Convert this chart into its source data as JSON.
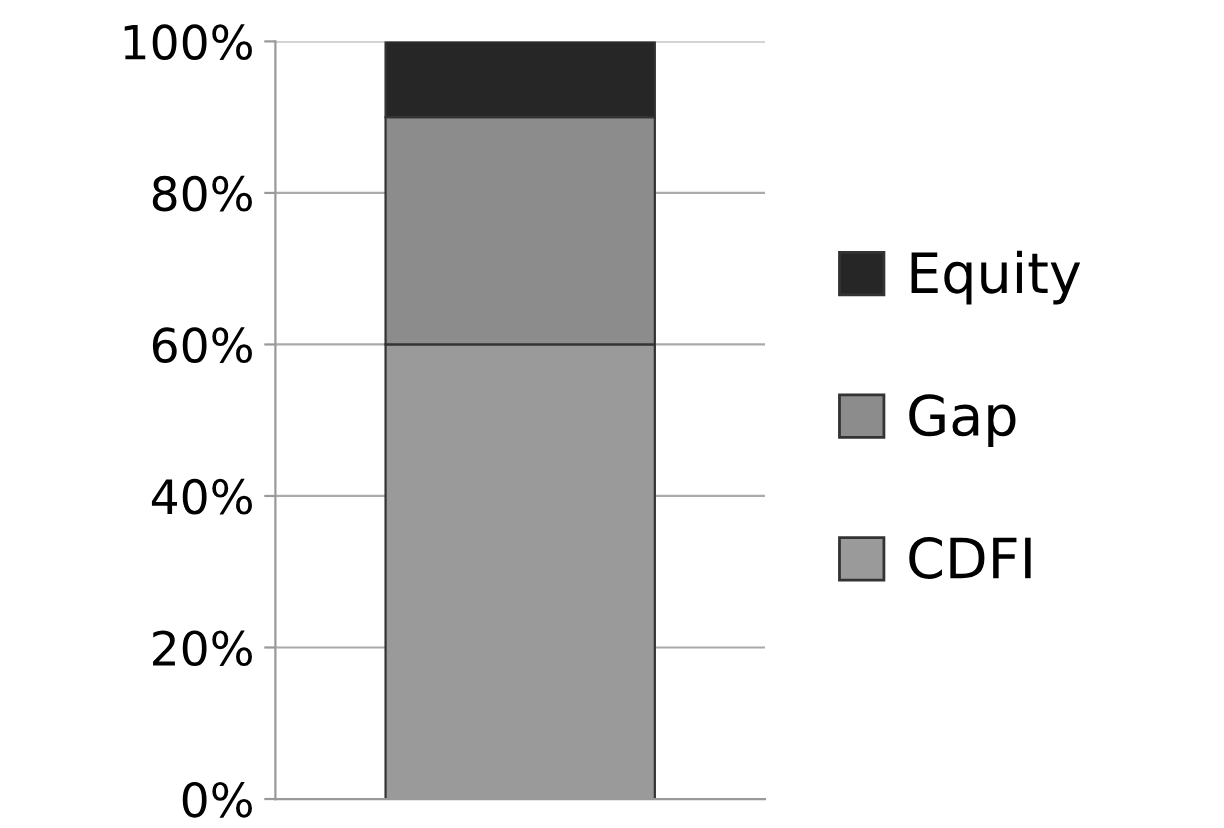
{
  "chart_data": {
    "type": "bar",
    "stacked": true,
    "categories": [
      null
    ],
    "series": [
      {
        "name": "CDFI",
        "color": "#9a9a9a",
        "values": [
          60
        ]
      },
      {
        "name": "Gap",
        "color": "#8c8c8c",
        "values": [
          30
        ]
      },
      {
        "name": "Equity",
        "color": "#262626",
        "values": [
          10
        ]
      }
    ],
    "ylim": [
      0,
      100
    ],
    "yticks": [
      {
        "value": 0,
        "label": "0%"
      },
      {
        "value": 20,
        "label": "20%"
      },
      {
        "value": 40,
        "label": "40%"
      },
      {
        "value": 60,
        "label": "60%"
      },
      {
        "value": 80,
        "label": "80%"
      },
      {
        "value": 100,
        "label": "100%"
      }
    ],
    "grid": "y",
    "legend": "right"
  }
}
